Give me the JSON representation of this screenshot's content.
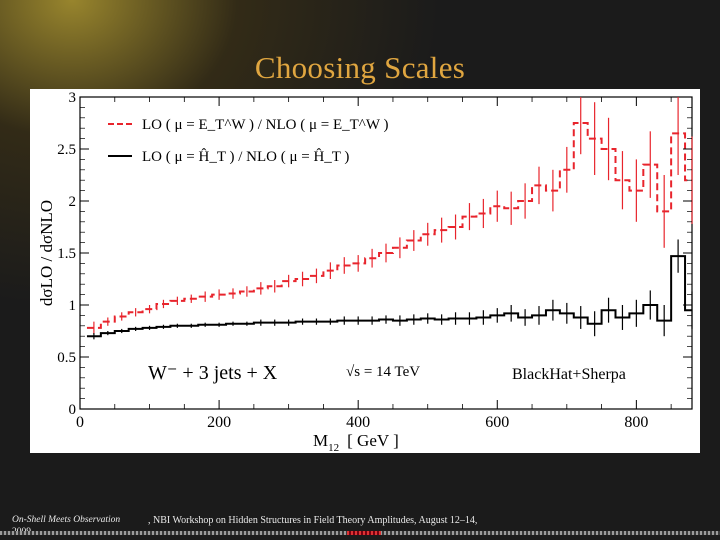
{
  "slide": {
    "title": "Choosing Scales",
    "footer_conference": "On-Shell Meets Observation",
    "footer_year": "2009",
    "footer_venue": ", NBI Workshop on Hidden Structures in Field Theory Amplitudes, August 12–14,"
  },
  "colors": {
    "title": "#e0a640",
    "series_lo_et": "#e8242c",
    "series_lo_ht": "#000000"
  },
  "chart_data": {
    "type": "line",
    "step": true,
    "title": "",
    "xlabel_main": "M",
    "xlabel_sub": "12",
    "xlabel_unit": "[ GeV ]",
    "ylabel": "dσLO / dσNLO",
    "xlim": [
      0,
      880
    ],
    "ylim": [
      0,
      3
    ],
    "xticks": [
      0,
      200,
      400,
      600,
      800
    ],
    "yticks": [
      0,
      0.5,
      1,
      1.5,
      2,
      2.5,
      3
    ],
    "ytick_labels": [
      "0",
      "0.5",
      "1",
      "1.5",
      "2",
      "2.5",
      "3"
    ],
    "legend_position": "top-left",
    "legend": [
      {
        "text": "LO ( μ = E_T^W )  /  NLO ( μ = E_T^W )",
        "series": 0
      },
      {
        "text": "LO ( μ = Ĥ_T )  /  NLO ( μ = Ĥ_T )",
        "series": 1
      }
    ],
    "annotations": {
      "process": "W⁻ + 3 jets + X",
      "energy": "√s = 14 TeV",
      "generator": "BlackHat+Sherpa"
    },
    "x": [
      20,
      40,
      60,
      80,
      100,
      120,
      140,
      160,
      180,
      200,
      220,
      240,
      260,
      280,
      300,
      320,
      340,
      360,
      380,
      400,
      420,
      440,
      460,
      480,
      500,
      520,
      540,
      560,
      580,
      600,
      620,
      640,
      660,
      680,
      700,
      720,
      740,
      760,
      780,
      800,
      820,
      840,
      860,
      880
    ],
    "series": [
      {
        "name": "LO ( μ = E_T^W ) / NLO ( μ = E_T^W )",
        "style": "dashed",
        "values": [
          0.78,
          0.84,
          0.89,
          0.93,
          0.96,
          1.01,
          1.04,
          1.06,
          1.08,
          1.1,
          1.11,
          1.13,
          1.16,
          1.18,
          1.23,
          1.25,
          1.28,
          1.33,
          1.38,
          1.4,
          1.45,
          1.5,
          1.55,
          1.62,
          1.68,
          1.72,
          1.75,
          1.85,
          1.88,
          1.95,
          1.93,
          2.0,
          2.15,
          2.1,
          2.3,
          2.75,
          2.6,
          2.5,
          2.2,
          2.1,
          2.35,
          1.9,
          2.65,
          2.2
        ],
        "errors": [
          0.06,
          0.04,
          0.04,
          0.04,
          0.04,
          0.04,
          0.04,
          0.04,
          0.05,
          0.05,
          0.05,
          0.05,
          0.06,
          0.06,
          0.06,
          0.07,
          0.07,
          0.08,
          0.08,
          0.08,
          0.09,
          0.09,
          0.1,
          0.1,
          0.11,
          0.12,
          0.12,
          0.13,
          0.14,
          0.15,
          0.16,
          0.17,
          0.18,
          0.2,
          0.22,
          0.3,
          0.35,
          0.3,
          0.28,
          0.3,
          0.32,
          0.35,
          0.4,
          0.42
        ]
      },
      {
        "name": "LO ( μ = Ĥ_T ) / NLO ( μ = Ĥ_T )",
        "style": "solid",
        "values": [
          0.7,
          0.73,
          0.75,
          0.77,
          0.78,
          0.79,
          0.8,
          0.8,
          0.81,
          0.81,
          0.82,
          0.82,
          0.83,
          0.83,
          0.83,
          0.84,
          0.84,
          0.84,
          0.85,
          0.85,
          0.85,
          0.86,
          0.85,
          0.86,
          0.87,
          0.86,
          0.87,
          0.87,
          0.88,
          0.9,
          0.92,
          0.88,
          0.9,
          0.95,
          0.92,
          0.88,
          0.82,
          0.95,
          0.88,
          0.92,
          1.0,
          0.85,
          1.47,
          0.95
        ],
        "errors": [
          0.03,
          0.02,
          0.02,
          0.02,
          0.02,
          0.02,
          0.02,
          0.02,
          0.02,
          0.02,
          0.02,
          0.02,
          0.03,
          0.03,
          0.03,
          0.03,
          0.03,
          0.03,
          0.04,
          0.04,
          0.04,
          0.04,
          0.05,
          0.05,
          0.05,
          0.05,
          0.06,
          0.06,
          0.07,
          0.07,
          0.08,
          0.08,
          0.09,
          0.1,
          0.1,
          0.11,
          0.12,
          0.12,
          0.12,
          0.13,
          0.14,
          0.15,
          0.16,
          0.18
        ]
      }
    ]
  }
}
